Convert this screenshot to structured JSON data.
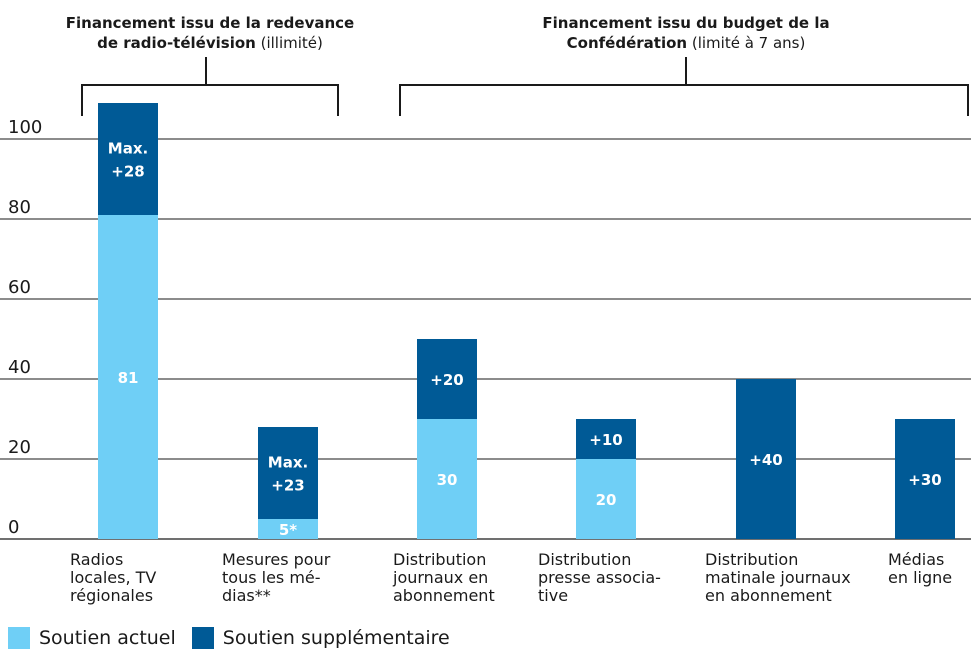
{
  "colors": {
    "current": "#6fcff6",
    "additional": "#005a96",
    "grid": "#1a1a1a",
    "value_text": "#ffffff"
  },
  "groups": [
    {
      "title_bold_1": "Financement issu de la redevance",
      "title_bold_2": "de radio-télévision",
      "title_normal_2": " (illimité)"
    },
    {
      "title_bold_1": "Financement issu du budget de la",
      "title_bold_2": "Confédération",
      "title_normal_2": " (limité à 7 ans)"
    }
  ],
  "legend": [
    {
      "label": "Soutien actuel",
      "color": "#6fcff6"
    },
    {
      "label": "Soutien supplémentaire",
      "color": "#005a96"
    }
  ],
  "chart_data": {
    "type": "bar",
    "stacked": true,
    "ylim": [
      0,
      110
    ],
    "yticks": [
      "0",
      "20",
      "40",
      "60",
      "80",
      "100"
    ],
    "grid": true,
    "categories": [
      "Radios\nlocales, TV\nrégionales",
      "Mesures pour\ntous les mé-\ndias**",
      "Distribution\njournaux en\nabonnement",
      "Distribution\npresse associa-\ntive",
      "Distribution\nmatinale journaux\nen abonnement",
      "Médias\nen ligne"
    ],
    "series": [
      {
        "name": "Soutien actuel",
        "values": [
          81,
          5,
          30,
          20,
          0,
          0
        ],
        "labels": [
          "81",
          "5*",
          "30",
          "20",
          "",
          ""
        ]
      },
      {
        "name": "Soutien supplémentaire",
        "values": [
          28,
          23,
          20,
          10,
          40,
          30
        ],
        "labels": [
          [
            "Max.",
            "+28"
          ],
          [
            "Max.",
            "+23"
          ],
          [
            "+20"
          ],
          [
            "+10"
          ],
          [
            "+40"
          ],
          [
            "+30"
          ]
        ]
      }
    ]
  }
}
